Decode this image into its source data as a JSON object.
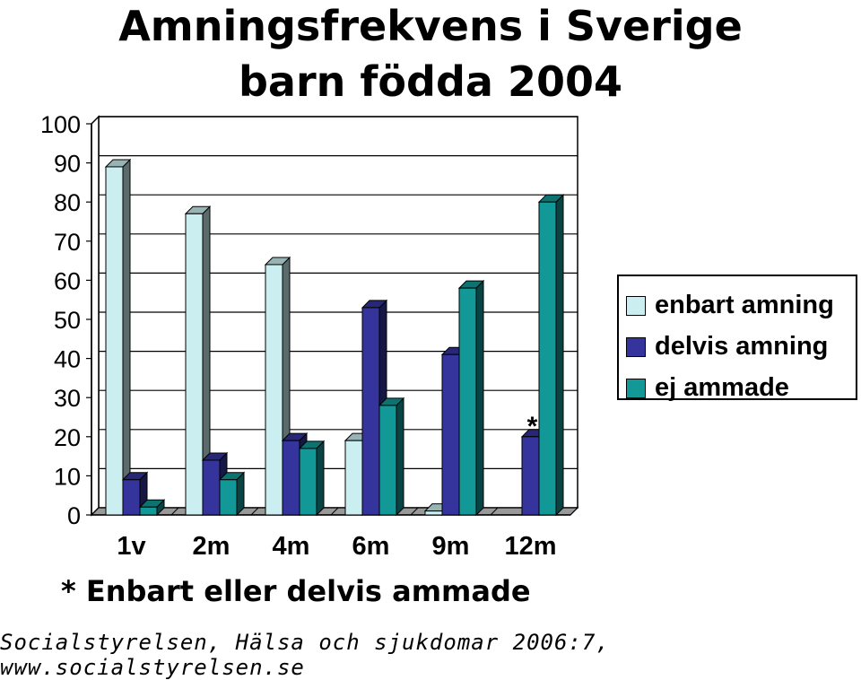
{
  "chart_data": {
    "type": "bar",
    "title": "Amningsfrekvens i Sverige",
    "subtitle": "barn födda 2004",
    "categories": [
      "1v",
      "2m",
      "4m",
      "6m",
      "9m",
      "12m"
    ],
    "series": [
      {
        "name": "enbart amning",
        "color": "#cbeef0",
        "values": [
          89,
          77,
          64,
          19,
          1,
          null
        ]
      },
      {
        "name": "delvis amning",
        "color": "#34349c",
        "values": [
          9,
          14,
          19,
          53,
          41,
          20
        ]
      },
      {
        "name": "ej ammade",
        "color": "#129896",
        "values": [
          2,
          9,
          17,
          28,
          58,
          80
        ]
      }
    ],
    "yticks": [
      0,
      10,
      20,
      30,
      40,
      50,
      60,
      70,
      80,
      90,
      100
    ],
    "ylim": [
      0,
      100
    ],
    "grid": true,
    "legend_position": "right",
    "annotation": {
      "text": "*",
      "category": "12m",
      "series": "delvis amning"
    }
  },
  "footnote": "* Enbart eller delvis ammade",
  "source": "Socialstyrelsen, Hälsa och sjukdomar 2006:7, www.socialstyrelsen.se"
}
